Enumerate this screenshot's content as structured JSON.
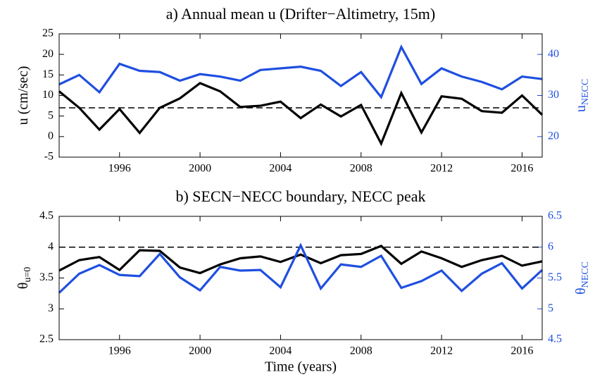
{
  "chart_data": [
    {
      "type": "line",
      "title": "a) Annual mean u (Drifter−Altimetry, 15m)",
      "ylabel": "u (cm/sec)",
      "y2label": "u",
      "y2label_sub": "NECC",
      "x": [
        1993,
        1994,
        1995,
        1996,
        1997,
        1998,
        1999,
        2000,
        2001,
        2002,
        2003,
        2004,
        2005,
        2006,
        2007,
        2008,
        2009,
        2010,
        2011,
        2012,
        2013,
        2014,
        2015,
        2016,
        2017
      ],
      "xlim": [
        1993,
        2017
      ],
      "xticks": [
        1996,
        2000,
        2004,
        2008,
        2012,
        2016
      ],
      "ylim": [
        -5,
        25
      ],
      "yticks": [
        -5,
        0,
        5,
        10,
        15,
        20,
        25
      ],
      "y2lim": [
        15,
        45
      ],
      "y2ticks": [
        20,
        30,
        40
      ],
      "hline": 7,
      "series": [
        {
          "color": "#000000",
          "values": [
            11,
            7,
            1.7,
            6.7,
            0.9,
            7,
            9.3,
            13,
            11,
            7.2,
            7.5,
            8.5,
            4.5,
            7.8,
            4.9,
            7.7,
            -1.7,
            10.6,
            1,
            9.8,
            9.2,
            6.2,
            5.8,
            10,
            5.3
          ]
        },
        {
          "color": "#1f4fe0",
          "axis": "y2",
          "values": [
            32.7,
            35,
            30.8,
            37.7,
            36,
            35.7,
            33.6,
            35.2,
            34.6,
            33.6,
            36.2,
            36.6,
            37,
            36,
            32.3,
            35.7,
            29.6,
            41.8,
            32.8,
            36.6,
            34.6,
            33.3,
            31.5,
            34.6,
            34
          ]
        }
      ]
    },
    {
      "type": "line",
      "title": "b) SECN−NECC boundary, NECC peak",
      "xlabel": "Time (years)",
      "ylabel": "θ",
      "ylabel_sub": "u=0",
      "y2label": "θ",
      "y2label_sub": "NECC",
      "x": [
        1993,
        1994,
        1995,
        1996,
        1997,
        1998,
        1999,
        2000,
        2001,
        2002,
        2003,
        2004,
        2005,
        2006,
        2007,
        2008,
        2009,
        2010,
        2011,
        2012,
        2013,
        2014,
        2015,
        2016,
        2017
      ],
      "xlim": [
        1993,
        2017
      ],
      "xticks": [
        1996,
        2000,
        2004,
        2008,
        2012,
        2016
      ],
      "ylim": [
        2.5,
        4.5
      ],
      "yticks": [
        2.5,
        3,
        3.5,
        4,
        4.5
      ],
      "y2lim": [
        4.5,
        6.5
      ],
      "y2ticks": [
        4.5,
        5,
        5.5,
        6,
        6.5
      ],
      "hline": 4,
      "series": [
        {
          "color": "#000000",
          "values": [
            3.62,
            3.79,
            3.84,
            3.63,
            3.95,
            3.94,
            3.67,
            3.58,
            3.72,
            3.82,
            3.85,
            3.76,
            3.88,
            3.74,
            3.87,
            3.89,
            4.02,
            3.73,
            3.93,
            3.82,
            3.68,
            3.79,
            3.86,
            3.7,
            3.77
          ]
        },
        {
          "color": "#1f4fe0",
          "axis": "y2",
          "values": [
            5.26,
            5.57,
            5.71,
            5.55,
            5.53,
            5.89,
            5.51,
            5.3,
            5.68,
            5.62,
            5.63,
            5.35,
            6.03,
            5.33,
            5.72,
            5.68,
            5.86,
            5.34,
            5.45,
            5.62,
            5.29,
            5.57,
            5.74,
            5.33,
            5.63
          ]
        }
      ]
    }
  ]
}
